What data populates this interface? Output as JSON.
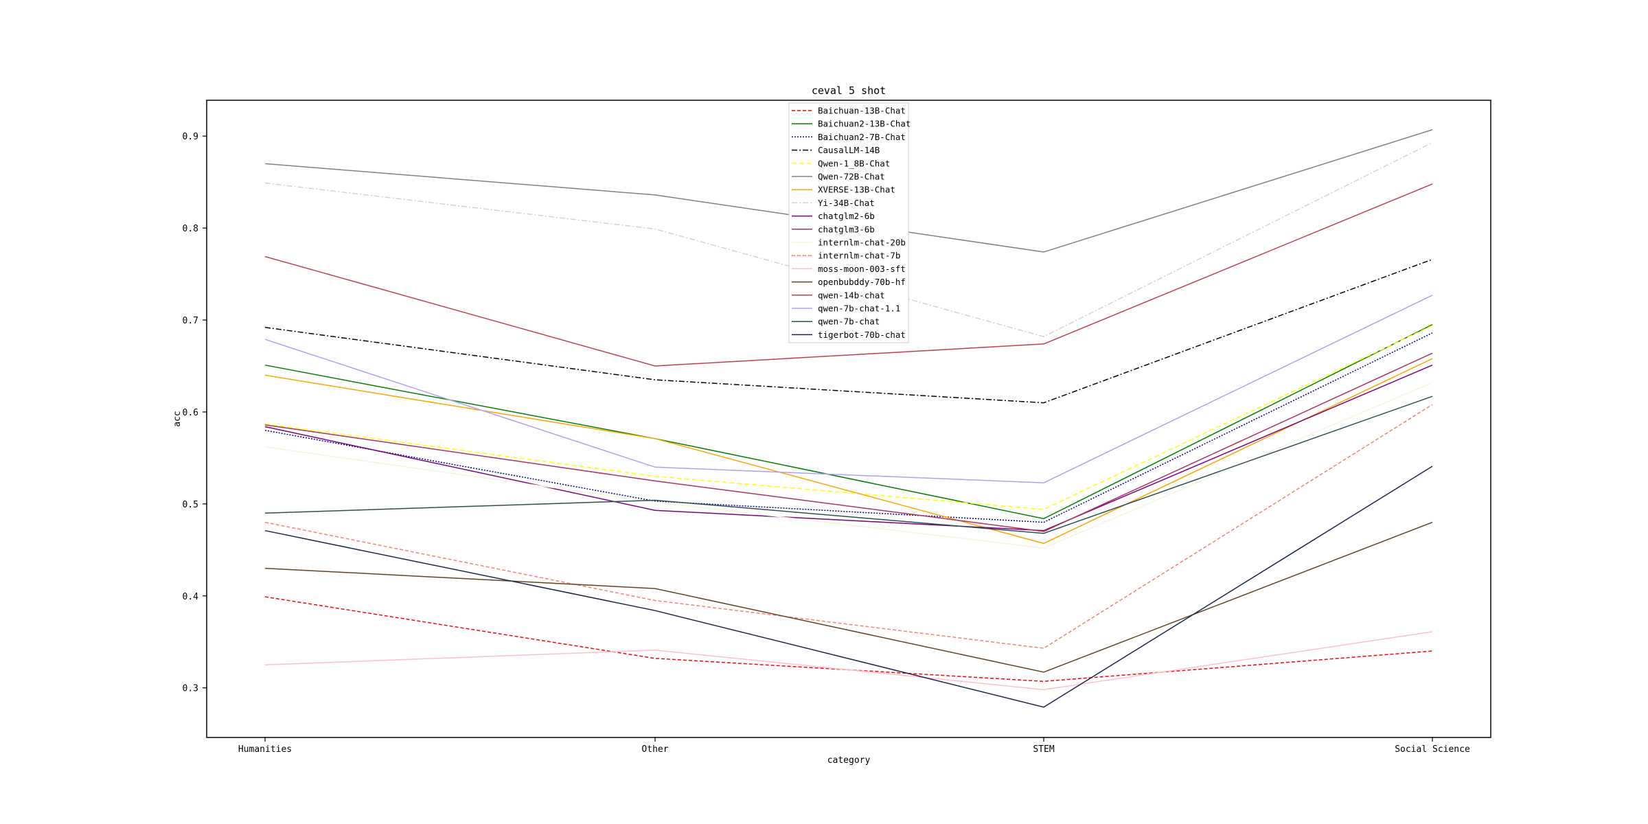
{
  "chart_data": {
    "type": "line",
    "title": "ceval 5 shot",
    "xlabel": "category",
    "ylabel": "acc",
    "categories": [
      "Humanities",
      "Other",
      "STEM",
      "Social Science"
    ],
    "ylim": [
      0.246,
      0.939
    ],
    "yticks": [
      "0.3",
      "0.4",
      "0.5",
      "0.6",
      "0.7",
      "0.8",
      "0.9"
    ],
    "grid": false,
    "legend_position": "top-center",
    "series": [
      {
        "name": "Baichuan-13B-Chat",
        "values": [
          0.399,
          0.332,
          0.307,
          0.34
        ],
        "color": "#ff0000",
        "dash": "5,3"
      },
      {
        "name": "Baichuan2-13B-Chat",
        "values": [
          0.651,
          0.571,
          0.484,
          0.695
        ],
        "color": "#008000",
        "dash": ""
      },
      {
        "name": "Baichuan2-7B-Chat",
        "values": [
          0.58,
          0.503,
          0.48,
          0.686
        ],
        "color": "#00008b",
        "dash": "2,2"
      },
      {
        "name": "CausalLM-14B",
        "values": [
          0.692,
          0.635,
          0.61,
          0.766
        ],
        "color": "#000000",
        "dash": "8,3,2,3"
      },
      {
        "name": "Qwen-1_8B-Chat",
        "values": [
          0.587,
          0.53,
          0.494,
          0.694
        ],
        "color": "#ffff00",
        "dash": "7,4"
      },
      {
        "name": "Qwen-72B-Chat",
        "values": [
          0.87,
          0.836,
          0.774,
          0.907
        ],
        "color": "#808080",
        "dash": ""
      },
      {
        "name": "XVERSE-13B-Chat",
        "values": [
          0.64,
          0.571,
          0.457,
          0.658
        ],
        "color": "#ffa500",
        "dash": ""
      },
      {
        "name": "Yi-34B-Chat",
        "values": [
          0.849,
          0.799,
          0.682,
          0.893
        ],
        "color": "#d3d3d3",
        "dash": "8,3,2,3"
      },
      {
        "name": "chatglm2-6b",
        "values": [
          0.584,
          0.493,
          0.471,
          0.651
        ],
        "color": "#800080",
        "dash": ""
      },
      {
        "name": "chatglm3-6b",
        "values": [
          0.586,
          0.525,
          0.47,
          0.664
        ],
        "color": "#b03060",
        "dash": ""
      },
      {
        "name": "internlm-chat-20b",
        "values": [
          0.562,
          0.502,
          0.452,
          0.632
        ],
        "color": "#f5f5dc",
        "dash": ""
      },
      {
        "name": "internlm-chat-7b",
        "values": [
          0.48,
          0.395,
          0.343,
          0.608
        ],
        "color": "#fa8072",
        "dash": "5,3"
      },
      {
        "name": "moss-moon-003-sft",
        "values": [
          0.325,
          0.341,
          0.298,
          0.361
        ],
        "color": "#ffc0cb",
        "dash": ""
      },
      {
        "name": "openbubddy-70b-hf",
        "values": [
          0.43,
          0.408,
          0.317,
          0.48
        ],
        "color": "#654321",
        "dash": ""
      },
      {
        "name": "qwen-14b-chat",
        "values": [
          0.769,
          0.65,
          0.674,
          0.848
        ],
        "color": "#c04050",
        "dash": ""
      },
      {
        "name": "qwen-7b-chat-1.1",
        "values": [
          0.679,
          0.54,
          0.523,
          0.727
        ],
        "color": "#b0a0f0",
        "dash": ""
      },
      {
        "name": "qwen-7b-chat",
        "values": [
          0.49,
          0.504,
          0.468,
          0.617
        ],
        "color": "#2f4f4f",
        "dash": ""
      },
      {
        "name": "tigerbot-70b-chat",
        "values": [
          0.471,
          0.384,
          0.279,
          0.541
        ],
        "color": "#1a2550",
        "dash": ""
      }
    ]
  }
}
